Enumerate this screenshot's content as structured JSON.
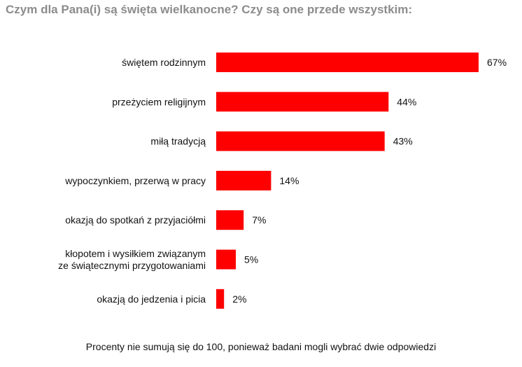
{
  "title": "Czym dla Pana(i) są święta wielkanocne? Czy są one przede wszystkim:",
  "note": "Procenty nie sumują się do 100, ponieważ badani mogli wybrać dwie odpowiedzi",
  "colors": {
    "bar": "#ff0000",
    "title": "#8c8c8c",
    "text": "#111111"
  },
  "chart_data": {
    "type": "bar",
    "orientation": "horizontal",
    "title": "Czym dla Pana(i) są święta wielkanocne? Czy są one przede wszystkim:",
    "categories": [
      [
        "świętem rodzinnym"
      ],
      [
        "przeżyciem religijnym"
      ],
      [
        "miłą tradycją"
      ],
      [
        "wypoczynkiem, przerwą w pracy"
      ],
      [
        "okazją do spotkań z przyjaciółmi"
      ],
      [
        "kłopotem i wysiłkiem związanym",
        "ze świątecznymi przygotowaniami"
      ],
      [
        "okazją do jedzenia i picia"
      ]
    ],
    "values": [
      67,
      44,
      43,
      14,
      7,
      5,
      2
    ],
    "value_labels": [
      "67%",
      "44%",
      "43%",
      "14%",
      "7%",
      "5%",
      "2%"
    ],
    "unit": "%",
    "grid": false,
    "legend": "none"
  }
}
